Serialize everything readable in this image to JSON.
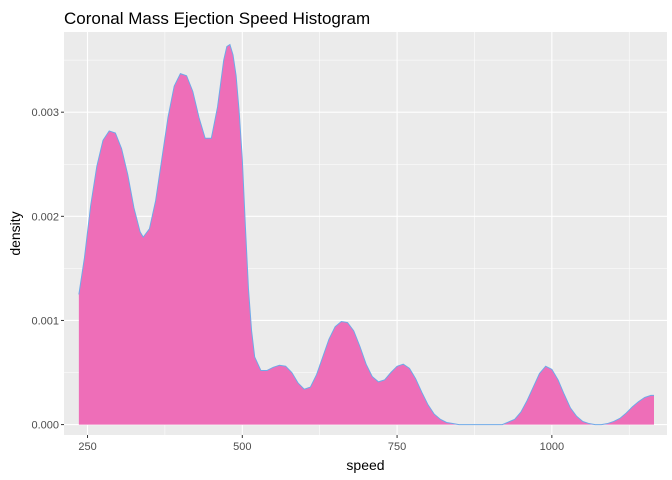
{
  "chart_data": {
    "type": "area",
    "title": "Coronal Mass Ejection Speed Histogram",
    "xlabel": "speed",
    "ylabel": "density",
    "xlim": [
      212,
      1186
    ],
    "ylim": [
      -0.0001,
      0.00377
    ],
    "x_ticks": [
      250,
      500,
      750,
      1000
    ],
    "x_tick_labels": [
      "250",
      "500",
      "750",
      "1000"
    ],
    "y_ticks": [
      0,
      0.001,
      0.002,
      0.003
    ],
    "y_tick_labels": [
      "0.000",
      "0.001",
      "0.002",
      "0.003"
    ],
    "grid": true,
    "legend": "none",
    "colors": {
      "panel": "#ebebeb",
      "grid_major": "#ffffff",
      "fill": "#ee6eb8",
      "outline": "#6fa9e8",
      "tick": "#333333"
    },
    "series": [
      {
        "x": [
          236,
          245,
          255,
          265,
          275,
          285,
          295,
          305,
          315,
          325,
          335,
          340,
          350,
          360,
          370,
          380,
          390,
          400,
          410,
          420,
          430,
          440,
          450,
          460,
          470,
          475,
          480,
          485,
          490,
          495,
          500,
          505,
          510,
          515,
          520,
          530,
          540,
          550,
          560,
          570,
          580,
          590,
          600,
          610,
          620,
          630,
          640,
          650,
          660,
          670,
          680,
          690,
          700,
          710,
          720,
          730,
          740,
          750,
          760,
          770,
          780,
          790,
          800,
          810,
          820,
          830,
          840,
          850,
          860,
          870,
          880,
          900,
          920,
          940,
          950,
          960,
          970,
          980,
          990,
          1000,
          1010,
          1020,
          1030,
          1040,
          1050,
          1060,
          1070,
          1080,
          1090,
          1100,
          1110,
          1120,
          1130,
          1140,
          1150,
          1160,
          1165
        ],
        "y": [
          0.00125,
          0.0016,
          0.0021,
          0.00248,
          0.00273,
          0.00282,
          0.0028,
          0.00265,
          0.0024,
          0.00208,
          0.00185,
          0.0018,
          0.00188,
          0.00215,
          0.00255,
          0.00295,
          0.00325,
          0.00337,
          0.00335,
          0.0032,
          0.00295,
          0.00275,
          0.00275,
          0.00305,
          0.0035,
          0.00363,
          0.00365,
          0.00355,
          0.00335,
          0.003,
          0.00255,
          0.0019,
          0.0013,
          0.0009,
          0.00065,
          0.00052,
          0.00052,
          0.00055,
          0.00057,
          0.00056,
          0.0005,
          0.0004,
          0.00034,
          0.00036,
          0.00048,
          0.00065,
          0.00082,
          0.00094,
          0.00099,
          0.00098,
          0.0009,
          0.00075,
          0.00058,
          0.00046,
          0.00041,
          0.00043,
          0.0005,
          0.00056,
          0.00058,
          0.00054,
          0.00044,
          0.00031,
          0.00019,
          0.0001,
          5e-05,
          2e-05,
          1e-05,
          0.0,
          0.0,
          0.0,
          0.0,
          0.0,
          0.0,
          5e-05,
          0.00012,
          0.00023,
          0.00036,
          0.00049,
          0.00056,
          0.00053,
          0.00043,
          0.00029,
          0.00016,
          8e-05,
          3e-05,
          1e-05,
          0.0,
          0.0,
          1e-05,
          3e-05,
          6e-05,
          0.00011,
          0.00017,
          0.00022,
          0.00026,
          0.00028,
          0.00028
        ]
      }
    ]
  }
}
